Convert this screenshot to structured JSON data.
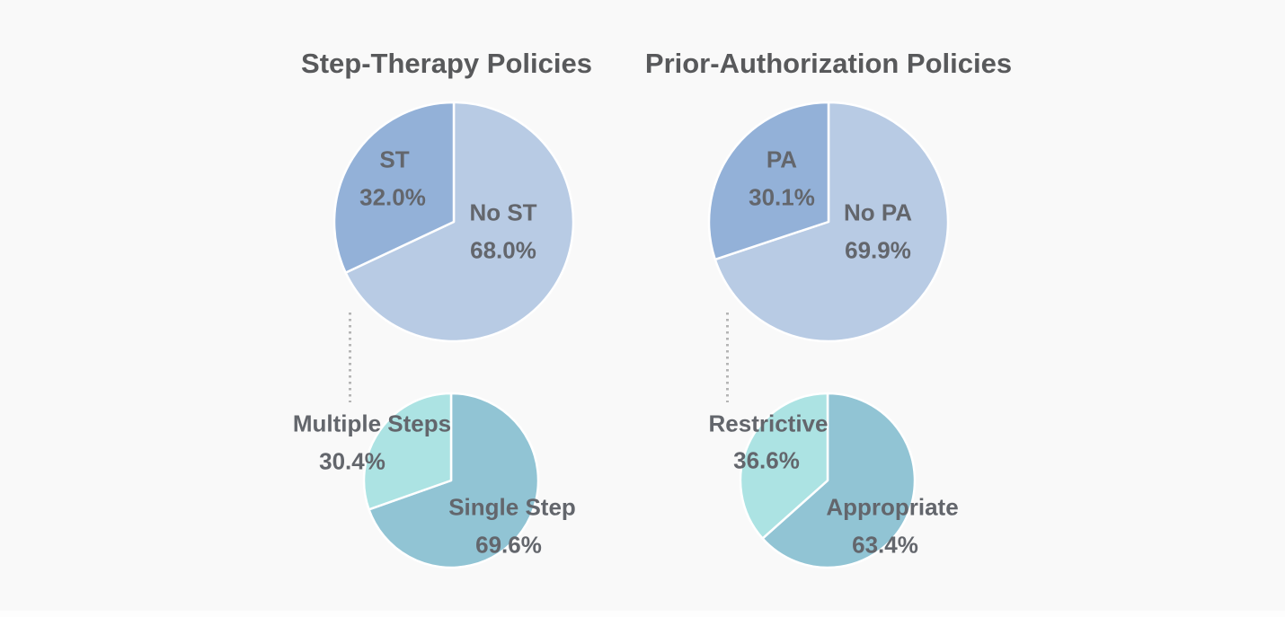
{
  "page": {
    "background_color": "#f9f9f9",
    "title_color": "#58595b",
    "label_color": "#63666c",
    "connector_color": "#b5b5b5"
  },
  "chart_data": [
    {
      "type": "pie-pair",
      "title": "Step-Therapy Policies",
      "legend_position": "none",
      "label_position": "on-slice",
      "pies": [
        {
          "name": "step-therapy-overall",
          "slices": [
            {
              "label": "No ST",
              "value": 68.0,
              "pct": "68.0%",
              "color": "#b8cbe4"
            },
            {
              "label": "ST",
              "value": 32.0,
              "pct": "32.0%",
              "color": "#93b1d8"
            }
          ]
        },
        {
          "name": "step-therapy-breakdown",
          "slices": [
            {
              "label": "Single Step",
              "value": 69.6,
              "pct": "69.6%",
              "color": "#91c4d4"
            },
            {
              "label": "Multiple Steps",
              "value": 30.4,
              "pct": "30.4%",
              "color": "#ace3e3"
            }
          ]
        }
      ]
    },
    {
      "type": "pie-pair",
      "title": "Prior-Authorization Policies",
      "legend_position": "none",
      "label_position": "on-slice",
      "pies": [
        {
          "name": "prior-authorization-overall",
          "slices": [
            {
              "label": "No PA",
              "value": 69.9,
              "pct": "69.9%",
              "color": "#b8cbe4"
            },
            {
              "label": "PA",
              "value": 30.1,
              "pct": "30.1%",
              "color": "#93b1d8"
            }
          ]
        },
        {
          "name": "prior-authorization-breakdown",
          "slices": [
            {
              "label": "Appropriate",
              "value": 63.4,
              "pct": "63.4%",
              "color": "#91c4d4"
            },
            {
              "label": "Restrictive",
              "value": 36.6,
              "pct": "36.6%",
              "color": "#ace3e3"
            }
          ]
        }
      ]
    }
  ]
}
